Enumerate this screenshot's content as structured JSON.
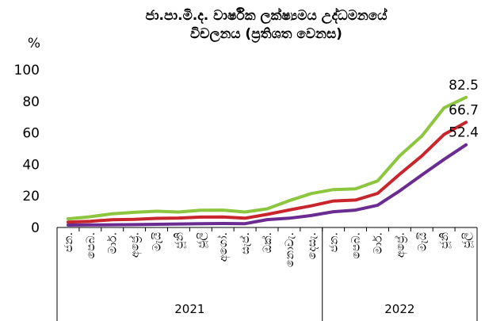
{
  "chart_data": {
    "type": "line",
    "title_line1": "ජා.පා.මි.ද. වාර්ෂික ලක්ෂ්‍යමය උද්ධමනයේ",
    "title_line2": "විචලනය (ප්‍රතිශත වෙනස)",
    "ylabel": "%",
    "ylim": [
      0,
      100
    ],
    "yticks": [
      "0",
      "20",
      "40",
      "60",
      "80",
      "100"
    ],
    "categories": [
      "ජන.",
      "පෙබ.",
      "මාර්.",
      "අප්‍රේ.",
      "මැයි",
      "ජූනි",
      "ජූලි",
      "අගෝ.",
      "සැප්.",
      "ඔක්.",
      "නොවැ.",
      "දෙසැ.",
      "ජන.",
      "පෙබ.",
      "මාර්.",
      "අප්‍රේ.",
      "මැයි",
      "ජූනි",
      "ජූලි"
    ],
    "years": [
      {
        "label": "2021",
        "count": 12
      },
      {
        "label": "2022",
        "count": 7
      }
    ],
    "series": [
      {
        "color": "#8cc63f",
        "values": [
          5.5,
          6.8,
          8.7,
          9.6,
          10.3,
          9.8,
          10.9,
          11.0,
          9.8,
          11.8,
          17.0,
          21.5,
          24.0,
          24.5,
          29.5,
          45.5,
          58.0,
          75.8,
          82.5
        ],
        "end_label": "82.5"
      },
      {
        "color": "#c9252c",
        "values": [
          3.4,
          3.9,
          4.9,
          5.2,
          5.8,
          6.0,
          6.6,
          6.7,
          5.9,
          8.3,
          11.1,
          13.7,
          16.8,
          17.4,
          21.6,
          33.8,
          45.4,
          58.9,
          66.7
        ],
        "end_label": "66.7"
      },
      {
        "color": "#6a2c91",
        "values": [
          1.5,
          1.6,
          1.7,
          1.8,
          2.0,
          2.2,
          2.4,
          2.5,
          2.4,
          5.0,
          5.9,
          7.6,
          10.0,
          11.0,
          14.1,
          23.2,
          33.3,
          43.1,
          52.4
        ],
        "end_label": "52.4"
      }
    ]
  }
}
